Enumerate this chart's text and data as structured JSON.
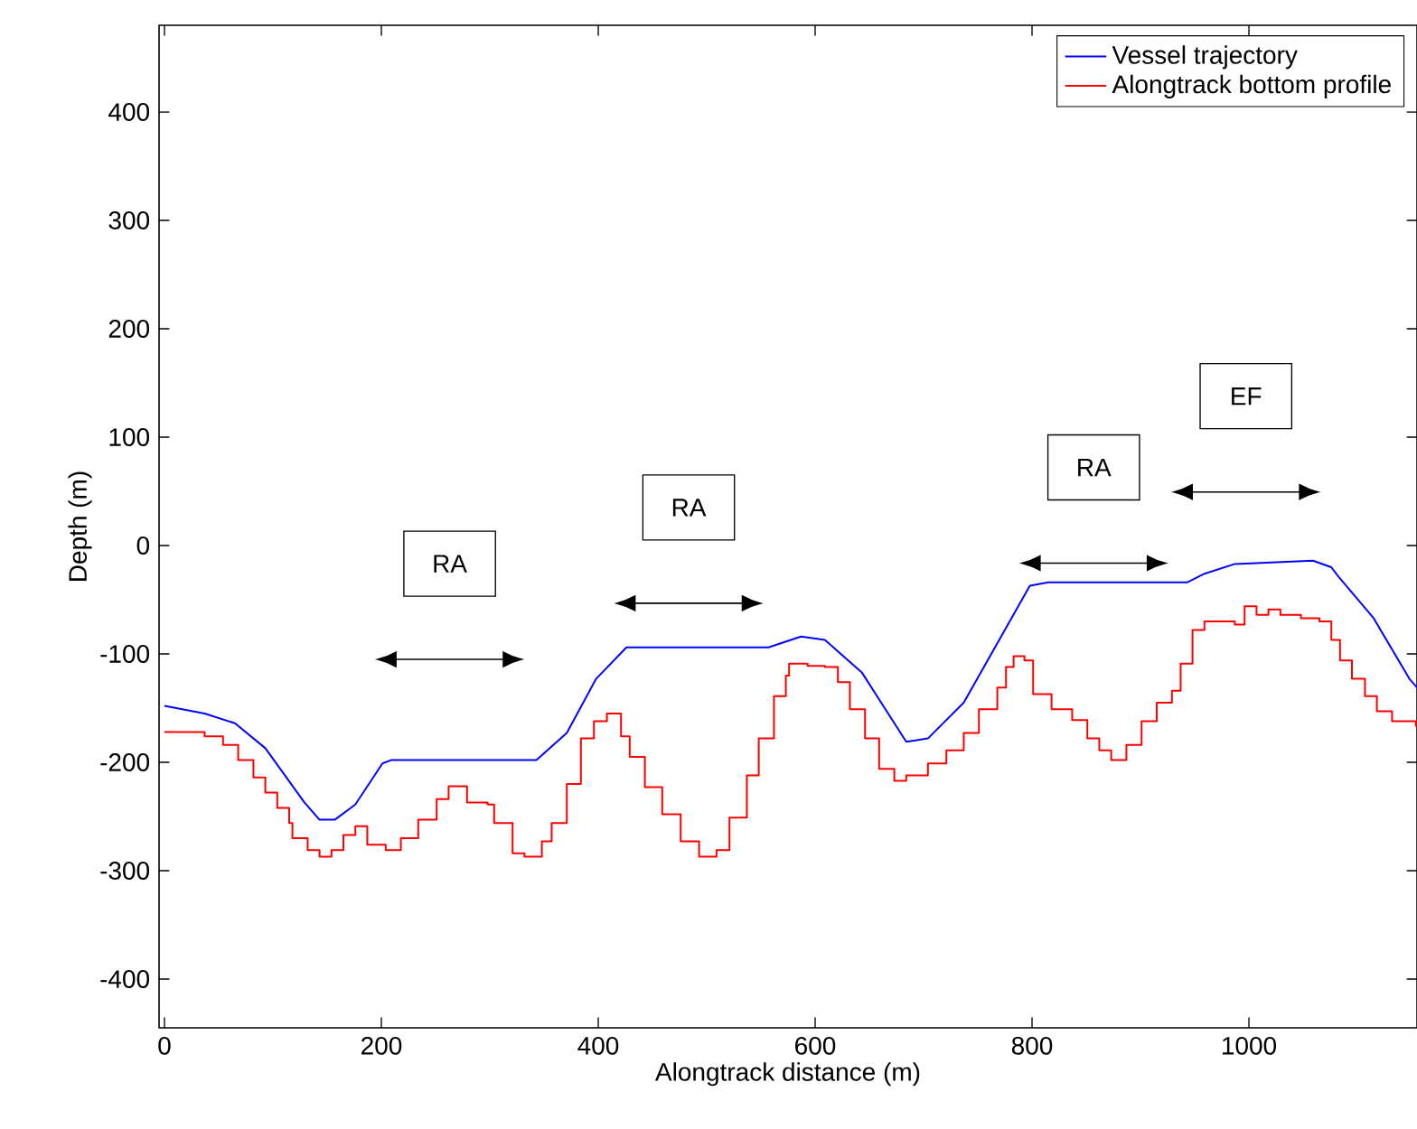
{
  "chart_data": {
    "type": "line",
    "xlabel": "Alongtrack distance (m)",
    "ylabel": "Depth (m)",
    "xlim": [
      -5,
      1155
    ],
    "ylim": [
      -445,
      480
    ],
    "xticks": [
      0,
      200,
      400,
      600,
      800,
      1000
    ],
    "yticks": [
      -400,
      -300,
      -200,
      -100,
      0,
      100,
      200,
      300,
      400
    ],
    "grid": false,
    "legend": "top right",
    "series": [
      {
        "name": "Vessel trajectory",
        "color": "#0000ff",
        "x": [
          0,
          37,
          65,
          93,
          129,
          143,
          157,
          176,
          201,
          209,
          343,
          371,
          398,
          426,
          557,
          587,
          609,
          643,
          684,
          704,
          737,
          798,
          815,
          943,
          959,
          987,
          1059,
          1076,
          1082,
          1115,
          1148,
          1155
        ],
        "values": [
          -148,
          -155,
          -164,
          -187,
          -237,
          -253,
          -253,
          -239,
          -201,
          -198,
          -198,
          -173,
          -123,
          -94,
          -94,
          -84,
          -87,
          -117,
          -181,
          -178,
          -145,
          -37,
          -34,
          -34,
          -26,
          -17,
          -14,
          -20,
          -28,
          -67,
          -123,
          -131
        ]
      },
      {
        "name": "Alongtrack bottom profile",
        "color": "#ff0000",
        "type": "step",
        "x": [
          0,
          37,
          54,
          68,
          82,
          93,
          104,
          115,
          118,
          132,
          143,
          154,
          165,
          176,
          187,
          204,
          218,
          234,
          251,
          262,
          279,
          298,
          304,
          321,
          332,
          348,
          357,
          371,
          384,
          396,
          408,
          421,
          429,
          443,
          459,
          476,
          493,
          509,
          521,
          537,
          548,
          562,
          573,
          576,
          593,
          609,
          621,
          632,
          646,
          659,
          673,
          684,
          704,
          721,
          737,
          751,
          768,
          776,
          783,
          793,
          801,
          818,
          837,
          851,
          862,
          873,
          887,
          901,
          915,
          929,
          937,
          948,
          959,
          987,
          996,
          1007,
          1018,
          1029,
          1048,
          1065,
          1076,
          1084,
          1095,
          1107,
          1118,
          1132,
          1154
        ],
        "values": [
          -172,
          -176,
          -184,
          -198,
          -214,
          -228,
          -242,
          -256,
          -270,
          -281,
          -287,
          -281,
          -267,
          -259,
          -276,
          -281,
          -270,
          -253,
          -234,
          -222,
          -237,
          -239,
          -256,
          -284,
          -287,
          -273,
          -256,
          -220,
          -178,
          -162,
          -155,
          -176,
          -195,
          -223,
          -248,
          -273,
          -287,
          -281,
          -251,
          -212,
          -178,
          -139,
          -120,
          -109,
          -111,
          -112,
          -126,
          -151,
          -178,
          -206,
          -217,
          -212,
          -201,
          -189,
          -173,
          -151,
          -131,
          -112,
          -102,
          -106,
          -137,
          -151,
          -161,
          -178,
          -189,
          -198,
          -184,
          -162,
          -145,
          -134,
          -109,
          -78,
          -70,
          -73,
          -56,
          -64,
          -59,
          -64,
          -67,
          -70,
          -87,
          -106,
          -123,
          -139,
          -153,
          -162,
          -167
        ]
      }
    ],
    "annotations": [
      "RA",
      "RA",
      "RA",
      "EF"
    ]
  }
}
